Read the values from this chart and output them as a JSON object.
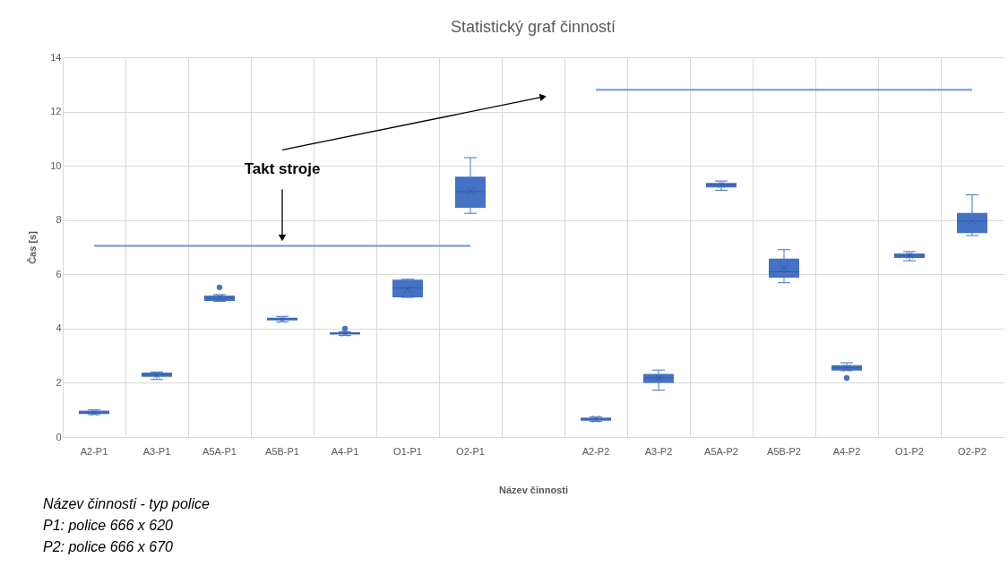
{
  "chart_data": {
    "type": "box",
    "title": "Statistický graf činností",
    "xlabel": "Název činnosti",
    "ylabel": "Čas [s]",
    "categories": [
      "A2-P1",
      "A3-P1",
      "A5A-P1",
      "A5B-P1",
      "A4-P1",
      "O1-P1",
      "O2-P1",
      null,
      "A2-P2",
      "A3-P2",
      "A5A-P2",
      "A5B-P2",
      "A4-P2",
      "O1-P2",
      "O2-P2"
    ],
    "ylim": [
      0,
      14
    ],
    "yticks": [
      0,
      2,
      4,
      6,
      8,
      10,
      12,
      14
    ],
    "grid": true,
    "series": [
      {
        "color": "#4472c4",
        "boxes": [
          {
            "low": 0.83,
            "q1": 0.85,
            "median": 0.9,
            "q3": 0.97,
            "high": 1.0,
            "mean": 0.9
          },
          {
            "low": 2.12,
            "q1": 2.22,
            "median": 2.3,
            "q3": 2.38,
            "high": 2.4,
            "mean": 2.28
          },
          {
            "low": 5.0,
            "q1": 5.02,
            "median": 5.12,
            "q3": 5.22,
            "high": 5.25,
            "mean": 5.15,
            "outliers": [
              5.52
            ]
          },
          {
            "low": 4.25,
            "q1": 4.3,
            "median": 4.35,
            "q3": 4.4,
            "high": 4.45,
            "mean": 4.33
          },
          {
            "low": 3.75,
            "q1": 3.78,
            "median": 3.82,
            "q3": 3.86,
            "high": 3.88,
            "mean": 3.82,
            "outliers": [
              4.0
            ]
          },
          {
            "low": 5.15,
            "q1": 5.15,
            "median": 5.5,
            "q3": 5.8,
            "high": 5.82,
            "mean": 5.45
          },
          {
            "low": 8.25,
            "q1": 8.45,
            "median": 9.05,
            "q3": 9.6,
            "high": 10.3,
            "mean": 9.07
          },
          null,
          {
            "low": 0.58,
            "q1": 0.6,
            "median": 0.65,
            "q3": 0.72,
            "high": 0.75,
            "mean": 0.66
          },
          {
            "low": 1.73,
            "q1": 2.0,
            "median": 2.18,
            "q3": 2.33,
            "high": 2.47,
            "mean": 2.18
          },
          {
            "low": 9.1,
            "q1": 9.2,
            "median": 9.3,
            "q3": 9.37,
            "high": 9.44,
            "mean": 9.3
          },
          {
            "low": 5.69,
            "q1": 5.88,
            "median": 6.09,
            "q3": 6.58,
            "high": 6.91,
            "mean": 6.2
          },
          {
            "low": 2.45,
            "q1": 2.45,
            "median": 2.55,
            "q3": 2.65,
            "high": 2.74,
            "mean": 2.55,
            "outliers": [
              2.18
            ]
          },
          {
            "low": 6.5,
            "q1": 6.6,
            "median": 6.68,
            "q3": 6.77,
            "high": 6.84,
            "mean": 6.7
          },
          {
            "low": 7.43,
            "q1": 7.52,
            "median": 7.96,
            "q3": 8.26,
            "high": 8.93,
            "mean": 7.98
          }
        ]
      },
      {
        "type": "line",
        "color": "#6f96d8",
        "values": [
          7.05,
          7.05,
          7.05,
          7.05,
          7.05,
          7.05,
          7.05,
          null,
          null,
          null,
          null,
          null,
          null,
          null,
          null
        ]
      },
      {
        "type": "line",
        "color": "#6f96d8",
        "values": [
          null,
          null,
          null,
          null,
          null,
          null,
          null,
          null,
          12.8,
          12.8,
          12.8,
          12.8,
          12.8,
          12.8,
          12.8
        ]
      }
    ],
    "annotations": [
      "Takt stroje",
      "Název činnosti - typ police",
      "P1: police 666 x 620",
      "P2: police 666 x 670"
    ]
  }
}
